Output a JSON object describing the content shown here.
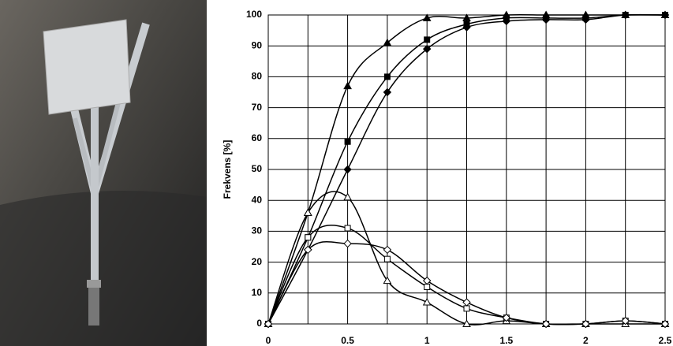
{
  "chart_data": {
    "type": "line",
    "y_label": "Frekvens [%]",
    "x": [
      0,
      0.25,
      0.5,
      0.75,
      1,
      1.25,
      1.5,
      1.75,
      2,
      2.25,
      2.5
    ],
    "xlim": [
      0,
      2.5
    ],
    "xticks": [
      0,
      {
        "value": 0.25,
        "label": null
      },
      0.5,
      {
        "value": 0.75,
        "label": null
      },
      1,
      {
        "value": 1.25,
        "label": null
      },
      1.5,
      {
        "value": 1.75,
        "label": null
      },
      2,
      {
        "value": 2.25,
        "label": null
      },
      2.5
    ],
    "ylim": [
      0,
      100
    ],
    "yticks": [
      0,
      10,
      20,
      30,
      40,
      50,
      60,
      70,
      80,
      90,
      100
    ],
    "grid": true,
    "smooth": true,
    "series": [
      {
        "color": "#000000",
        "marker": "triangle",
        "filled": true,
        "values": [
          0,
          36,
          77,
          91,
          99,
          99,
          100,
          100,
          100,
          100,
          100
        ]
      },
      {
        "color": "#000000",
        "marker": "square",
        "filled": true,
        "values": [
          0,
          28,
          59,
          80,
          92,
          97,
          99,
          99,
          99,
          100,
          100
        ]
      },
      {
        "color": "#000000",
        "marker": "diamond",
        "filled": true,
        "values": [
          0,
          24,
          50,
          75,
          89,
          96,
          98,
          98.5,
          98.5,
          100,
          100
        ]
      },
      {
        "color": "#000000",
        "marker": "triangle",
        "filled": false,
        "values": [
          0,
          36,
          41,
          14,
          7,
          0,
          1,
          0,
          0,
          0,
          0
        ]
      },
      {
        "color": "#000000",
        "marker": "square",
        "filled": false,
        "values": [
          0,
          28,
          31,
          21,
          12,
          5,
          2,
          0,
          0,
          1,
          0
        ]
      },
      {
        "color": "#000000",
        "marker": "diamond",
        "filled": false,
        "values": [
          0,
          24,
          26,
          24,
          14,
          7,
          2,
          0,
          0,
          1,
          0
        ]
      }
    ]
  }
}
